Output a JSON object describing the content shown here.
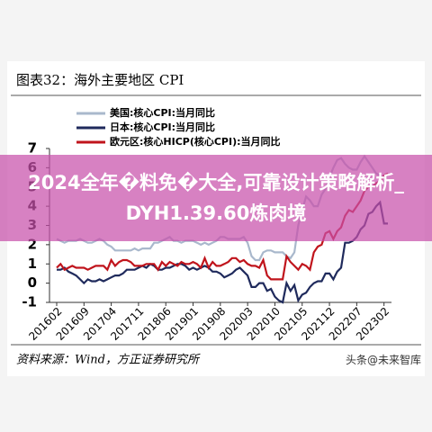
{
  "chart_data": {
    "type": "line",
    "title": "图表32：海外主要地区 CPI",
    "source": "资料来源：Wind，方正证券研究所",
    "categories": [
      "201602",
      null,
      null,
      null,
      null,
      null,
      null,
      "201609",
      null,
      null,
      null,
      null,
      null,
      null,
      "201704",
      null,
      null,
      null,
      null,
      null,
      null,
      "201711",
      null,
      null,
      null,
      null,
      null,
      null,
      "201806",
      null,
      null,
      null,
      null,
      null,
      null,
      "201901",
      null,
      null,
      null,
      null,
      null,
      null,
      "201908",
      null,
      null,
      null,
      null,
      null,
      null,
      "202003",
      null,
      null,
      null,
      null,
      null,
      null,
      "202010",
      null,
      null,
      null,
      null,
      null,
      null,
      "202105",
      null,
      null,
      null,
      null,
      null,
      null,
      "202112",
      null,
      null,
      null,
      null,
      null,
      null,
      "202207",
      null,
      null,
      null,
      null,
      null,
      null,
      "202302",
      null
    ],
    "series": [
      {
        "name": "美国:核心CPI:当月同比",
        "color": "#a9b8cc",
        "values": [
          2.3,
          2.2,
          2.1,
          2.2,
          2.2,
          2.2,
          2.3,
          2.2,
          2.1,
          2.1,
          2.2,
          2.3,
          2.2,
          2.0,
          1.9,
          1.7,
          1.7,
          1.7,
          1.7,
          1.7,
          1.8,
          1.7,
          1.8,
          1.8,
          1.8,
          2.1,
          2.1,
          2.2,
          2.3,
          2.4,
          2.2,
          2.2,
          2.1,
          2.2,
          2.2,
          2.2,
          2.1,
          2.0,
          2.1,
          2.0,
          2.1,
          2.2,
          2.4,
          2.4,
          2.3,
          2.3,
          2.3,
          2.3,
          2.4,
          2.1,
          1.4,
          1.2,
          1.2,
          1.6,
          1.7,
          1.7,
          1.6,
          1.6,
          1.6,
          1.4,
          1.3,
          1.6,
          3.0,
          3.8,
          4.5,
          4.3,
          4.0,
          4.0,
          4.6,
          4.9,
          5.5,
          6.0,
          6.4,
          6.5,
          6.2,
          6.0,
          5.9,
          5.9,
          6.3,
          6.6,
          6.3,
          6.0,
          5.7,
          5.6,
          5.5,
          5.6
        ]
      },
      {
        "name": "日本:核心CPI:当月同比",
        "color": "#1f2a5c",
        "values": [
          0.7,
          0.7,
          0.8,
          0.6,
          0.5,
          0.4,
          0.2,
          0.0,
          0.2,
          0.1,
          0.1,
          0.2,
          0.1,
          0.2,
          0.3,
          0.4,
          0.4,
          0.5,
          0.7,
          0.7,
          0.7,
          0.8,
          0.9,
          0.8,
          1.0,
          0.9,
          0.7,
          0.7,
          0.8,
          0.8,
          0.9,
          1.0,
          1.0,
          0.9,
          0.7,
          0.8,
          0.7,
          0.8,
          0.9,
          0.8,
          0.6,
          0.6,
          0.5,
          0.3,
          0.4,
          0.5,
          0.7,
          0.8,
          0.6,
          0.4,
          -0.2,
          -0.2,
          0.0,
          0.0,
          -0.4,
          -0.3,
          -0.7,
          -0.9,
          -1.0,
          0.0,
          -0.4,
          -0.1,
          -0.9,
          -0.6,
          -0.5,
          -0.2,
          0.0,
          0.1,
          0.1,
          0.5,
          0.5,
          0.2,
          0.6,
          0.8,
          2.1,
          2.1,
          2.2,
          2.4,
          2.8,
          3.0,
          3.6,
          3.7,
          4.0,
          4.2,
          3.1,
          3.1
        ]
      },
      {
        "name": "欧元区:核心HICP(核心CPI):当月同比",
        "color": "#c0141c",
        "values": [
          0.8,
          1.0,
          0.7,
          0.8,
          0.9,
          0.8,
          0.8,
          0.8,
          0.7,
          0.8,
          0.9,
          0.9,
          0.9,
          0.7,
          1.2,
          0.9,
          1.1,
          1.2,
          1.2,
          1.1,
          0.9,
          0.9,
          0.9,
          1.0,
          1.0,
          1.0,
          0.7,
          1.1,
          0.9,
          1.1,
          1.0,
          0.9,
          1.1,
          1.0,
          1.0,
          1.1,
          1.0,
          0.8,
          1.3,
          0.8,
          1.1,
          0.9,
          0.9,
          1.0,
          1.1,
          1.3,
          1.3,
          1.1,
          1.2,
          1.0,
          0.9,
          0.9,
          0.8,
          1.2,
          0.4,
          0.2,
          0.2,
          0.2,
          0.2,
          1.4,
          1.1,
          0.9,
          0.7,
          1.0,
          0.9,
          0.7,
          1.6,
          1.9,
          2.0,
          2.6,
          2.7,
          2.3,
          2.7,
          2.9,
          3.5,
          3.8,
          3.7,
          4.0,
          4.3,
          4.8,
          5.0,
          5.0,
          5.2,
          5.3,
          5.6,
          5.7
        ]
      }
    ],
    "ylim": [
      -1,
      7
    ],
    "yticks": [
      -1,
      0,
      1,
      2,
      3,
      4,
      5,
      6,
      7
    ],
    "legend": "upper-left"
  },
  "overlay": {
    "banner": "2024全年�料免�大全,可靠设计策略解析_DYH1.39.60炼肉境",
    "watermark": "头条@未来智库"
  }
}
